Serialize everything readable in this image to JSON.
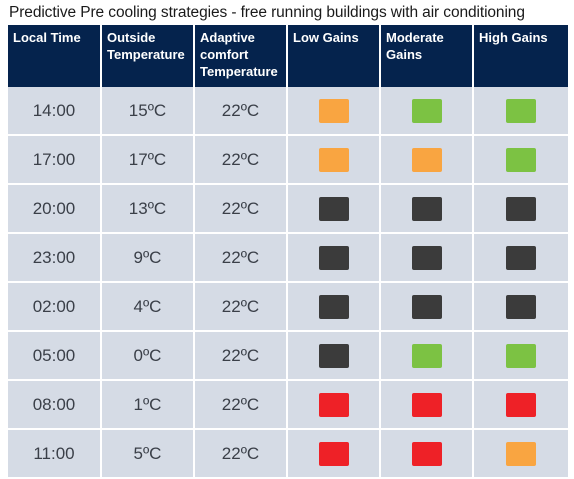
{
  "title": "Predictive Pre cooling strategies - free running buildings with air conditioning",
  "colors": {
    "orange": "#f9a541",
    "green": "#7cc243",
    "dark": "#3b3b3b",
    "red": "#ee2127",
    "header_bg": "#05234d",
    "cell_bg": "#d5dbe5"
  },
  "headers": {
    "time": "Local Time",
    "outside_l1": "Outside",
    "outside_l2": "Temperature",
    "adaptive_l1": "Adaptive",
    "adaptive_l2": "comfort",
    "adaptive_l3": "Temperature",
    "low": "Low Gains",
    "moderate_l1": "Moderate",
    "moderate_l2": "Gains",
    "high": "High Gains"
  },
  "rows": [
    {
      "time": "14:00",
      "outside": "15ºC",
      "adaptive": "22ºC",
      "low": "orange",
      "moderate": "green",
      "high": "green"
    },
    {
      "time": "17:00",
      "outside": "17ºC",
      "adaptive": "22ºC",
      "low": "orange",
      "moderate": "orange",
      "high": "green"
    },
    {
      "time": "20:00",
      "outside": "13ºC",
      "adaptive": "22ºC",
      "low": "dark",
      "moderate": "dark",
      "high": "dark"
    },
    {
      "time": "23:00",
      "outside": "9ºC",
      "adaptive": "22ºC",
      "low": "dark",
      "moderate": "dark",
      "high": "dark"
    },
    {
      "time": "02:00",
      "outside": "4ºC",
      "adaptive": "22ºC",
      "low": "dark",
      "moderate": "dark",
      "high": "dark"
    },
    {
      "time": "05:00",
      "outside": "0ºC",
      "adaptive": "22ºC",
      "low": "dark",
      "moderate": "green",
      "high": "green"
    },
    {
      "time": "08:00",
      "outside": "1ºC",
      "adaptive": "22ºC",
      "low": "red",
      "moderate": "red",
      "high": "red"
    },
    {
      "time": "11:00",
      "outside": "5ºC",
      "adaptive": "22ºC",
      "low": "red",
      "moderate": "red",
      "high": "orange"
    }
  ]
}
